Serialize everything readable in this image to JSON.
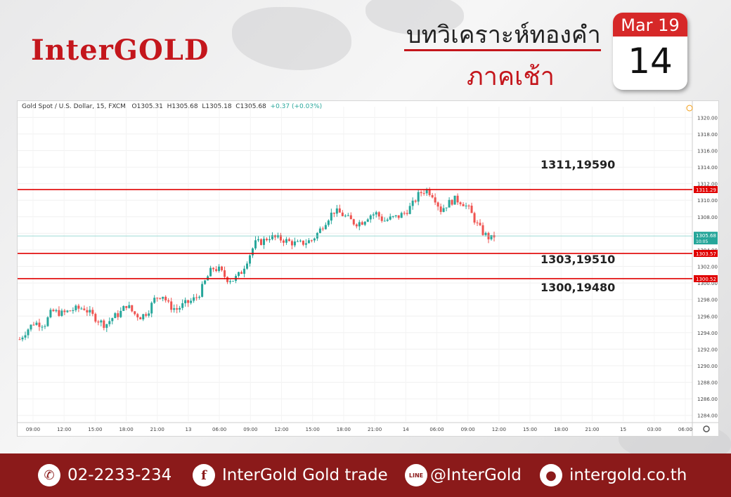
{
  "header": {
    "logo": "InterGOLD",
    "title_line1": "บทวิเคราะห์ทองคำ",
    "title_line2": "ภาคเช้า",
    "calendar_month": "Mar 19",
    "calendar_day": "14"
  },
  "chart_legend": {
    "symbol": "Gold Spot / U.S. Dollar, 15, FXCM",
    "open": "O1305.31",
    "high": "H1305.68",
    "low": "L1305.18",
    "close": "C1305.68",
    "change": "+0.37 (+0.03%)"
  },
  "colors": {
    "brand_red": "#c4161c",
    "footer_bg": "#8b1a1a",
    "candle_up": "#26a69a",
    "candle_down": "#ef5350",
    "level_line": "#e00000"
  },
  "chart_data": {
    "type": "candlestick",
    "y_ticks": [
      1284,
      1286,
      1288,
      1290,
      1292,
      1294,
      1296,
      1298,
      1300,
      1302,
      1304,
      1306,
      1308,
      1310,
      1312,
      1314,
      1316,
      1318,
      1320
    ],
    "y_tick_labels": [
      "1284.00",
      "1286.00",
      "1288.00",
      "1290.00",
      "1292.00",
      "1294.00",
      "1296.00",
      "1298.00",
      "1300.00",
      "1302.00",
      "1304.00",
      "1306.00",
      "1308.00",
      "1310.00",
      "1312.00",
      "1314.00",
      "1316.00",
      "1318.00",
      "1320.00"
    ],
    "ylim": [
      1283.3,
      1321.3
    ],
    "x_ticks": [
      "09:00",
      "12:00",
      "15:00",
      "18:00",
      "21:00",
      "13",
      "06:00",
      "09:00",
      "12:00",
      "15:00",
      "18:00",
      "21:00",
      "14",
      "06:00",
      "09:00",
      "12:00",
      "15:00",
      "18:00",
      "21:00",
      "15",
      "03:00",
      "06:00"
    ],
    "levels": [
      {
        "price": 1311.29,
        "tag": "1311.29",
        "label": "1311,19590"
      },
      {
        "price": 1303.57,
        "tag": "1303.57",
        "label": "1303,19510"
      },
      {
        "price": 1300.52,
        "tag": "1300.52",
        "label": "1300,19480"
      }
    ],
    "last_price": {
      "price": 1305.68,
      "tag": "1305.68",
      "countdown": "10:05"
    },
    "close_path": [
      [
        0,
        1293.2
      ],
      [
        2,
        1294.3
      ],
      [
        4,
        1295.2
      ],
      [
        7,
        1295.0
      ],
      [
        9,
        1296.6
      ],
      [
        12,
        1296.3
      ],
      [
        15,
        1296.8
      ],
      [
        18,
        1297.0
      ],
      [
        20,
        1296.2
      ],
      [
        22,
        1295.5
      ],
      [
        24,
        1294.9
      ],
      [
        26,
        1295.8
      ],
      [
        28,
        1296.3
      ],
      [
        30,
        1297.4
      ],
      [
        32,
        1296.3
      ],
      [
        34,
        1295.9
      ],
      [
        36,
        1296.6
      ],
      [
        38,
        1298.2
      ],
      [
        40,
        1298.6
      ],
      [
        42,
        1297.2
      ],
      [
        44,
        1296.8
      ],
      [
        46,
        1297.4
      ],
      [
        48,
        1297.8
      ],
      [
        50,
        1298.4
      ],
      [
        52,
        1300.2
      ],
      [
        54,
        1301.8
      ],
      [
        56,
        1301.6
      ],
      [
        58,
        1300.5
      ],
      [
        60,
        1300.4
      ],
      [
        62,
        1301.2
      ],
      [
        64,
        1303.0
      ],
      [
        66,
        1304.8
      ],
      [
        68,
        1305.0
      ],
      [
        70,
        1305.6
      ],
      [
        72,
        1305.4
      ],
      [
        74,
        1305.2
      ],
      [
        76,
        1304.9
      ],
      [
        78,
        1304.7
      ],
      [
        80,
        1304.9
      ],
      [
        82,
        1305.2
      ],
      [
        84,
        1306.3
      ],
      [
        86,
        1307.6
      ],
      [
        88,
        1308.7
      ],
      [
        90,
        1308.4
      ],
      [
        92,
        1307.8
      ],
      [
        94,
        1307.2
      ],
      [
        96,
        1307.4
      ],
      [
        98,
        1308.2
      ],
      [
        100,
        1308.4
      ],
      [
        102,
        1307.5
      ],
      [
        104,
        1307.8
      ],
      [
        106,
        1308.0
      ],
      [
        108,
        1308.5
      ],
      [
        110,
        1309.4
      ],
      [
        112,
        1310.8
      ],
      [
        114,
        1311.3
      ],
      [
        116,
        1310.6
      ],
      [
        118,
        1308.8
      ],
      [
        120,
        1309.6
      ],
      [
        122,
        1310.1
      ],
      [
        124,
        1309.8
      ],
      [
        126,
        1308.9
      ],
      [
        128,
        1307.2
      ],
      [
        130,
        1306.0
      ],
      [
        132,
        1305.3
      ],
      [
        133,
        1305.68
      ]
    ]
  },
  "footer": {
    "phone": "02-2233-234",
    "facebook": "InterGold Gold trade",
    "line": "@InterGold",
    "website": "intergold.co.th",
    "line_icon_text": "LINE"
  }
}
